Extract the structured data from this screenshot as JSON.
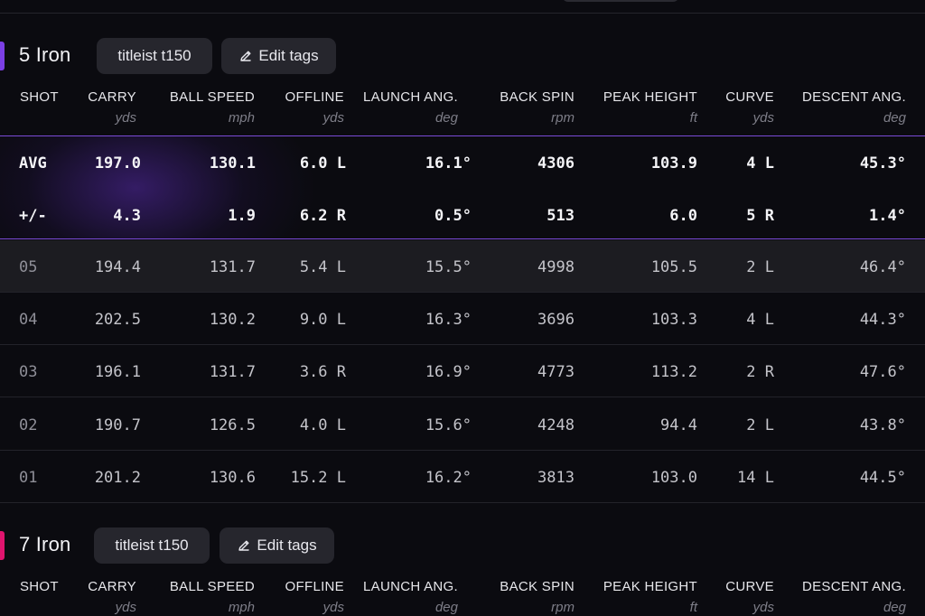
{
  "columns": [
    {
      "key": "shot",
      "label": "SHOT",
      "unit": ""
    },
    {
      "key": "carry",
      "label": "CARRY",
      "unit": "yds"
    },
    {
      "key": "ball_speed",
      "label": "BALL SPEED",
      "unit": "mph"
    },
    {
      "key": "offline",
      "label": "OFFLINE",
      "unit": "yds"
    },
    {
      "key": "launch",
      "label": "LAUNCH ANG.",
      "unit": "deg"
    },
    {
      "key": "spin",
      "label": "BACK SPIN",
      "unit": "rpm"
    },
    {
      "key": "peak",
      "label": "PEAK HEIGHT",
      "unit": "ft"
    },
    {
      "key": "curve",
      "label": "CURVE",
      "unit": "yds"
    },
    {
      "key": "descent",
      "label": "DESCENT ANG.",
      "unit": "deg"
    }
  ],
  "edit_tags_label": "Edit tags",
  "clubs": [
    {
      "name": "5 Iron",
      "tag": "titleist t150",
      "accent_color": "#7b3fe4",
      "summary": [
        [
          "AVG",
          "197.0",
          "130.1",
          "6.0 L",
          "16.1°",
          "4306",
          "103.9",
          "4 L",
          "45.3°"
        ],
        [
          "+/-",
          "4.3",
          "1.9",
          "6.2 R",
          "0.5°",
          "513",
          "6.0",
          "5 R",
          "1.4°"
        ]
      ],
      "shots": [
        [
          "05",
          "194.4",
          "131.7",
          "5.4 L",
          "15.5°",
          "4998",
          "105.5",
          "2 L",
          "46.4°"
        ],
        [
          "04",
          "202.5",
          "130.2",
          "9.0 L",
          "16.3°",
          "3696",
          "103.3",
          "4 L",
          "44.3°"
        ],
        [
          "03",
          "196.1",
          "131.7",
          "3.6 R",
          "16.9°",
          "4773",
          "113.2",
          "2 R",
          "47.6°"
        ],
        [
          "02",
          "190.7",
          "126.5",
          "4.0 L",
          "15.6°",
          "4248",
          "94.4",
          "2 L",
          "43.8°"
        ],
        [
          "01",
          "201.2",
          "130.6",
          "15.2 L",
          "16.2°",
          "3813",
          "103.0",
          "14 L",
          "44.5°"
        ]
      ]
    },
    {
      "name": "7 Iron",
      "tag": "titleist t150",
      "accent_color": "#e0146e",
      "summary": [],
      "shots": []
    }
  ]
}
